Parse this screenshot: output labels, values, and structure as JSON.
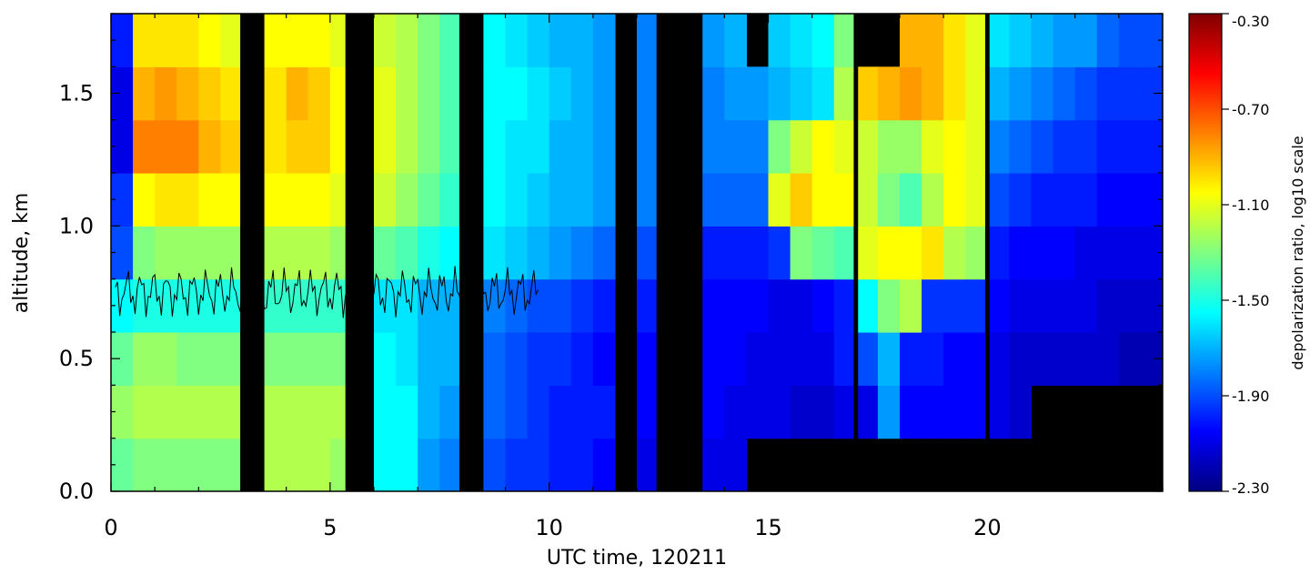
{
  "chart_data": [
    {
      "type": "heatmap",
      "title": "",
      "xlabel": "UTC time, 120211",
      "ylabel": "altitude, km",
      "xlim": [
        0,
        24
      ],
      "ylim": [
        0,
        1.8
      ],
      "x_ticks": [
        0,
        5,
        10,
        15,
        20
      ],
      "x_tick_labels": [
        "0",
        "5",
        "10",
        "15",
        "20"
      ],
      "y_ticks": [
        0.0,
        0.5,
        1.0,
        1.5
      ],
      "y_tick_labels": [
        "0.0",
        "0.5",
        "1.0",
        "1.5"
      ],
      "grid": false,
      "no_data_color": "#000000",
      "contour_color": "#000000",
      "x_bins": [
        0,
        0.5,
        1,
        1.5,
        2,
        2.5,
        3,
        3.5,
        4,
        4.5,
        5,
        5.5,
        6,
        6.5,
        7,
        7.5,
        8,
        8.5,
        9,
        9.5,
        10,
        10.5,
        11,
        11.5,
        12,
        12.5,
        13,
        13.5,
        14,
        14.5,
        15,
        15.5,
        16,
        16.5,
        17,
        17.5,
        18,
        18.5,
        19,
        19.5,
        20,
        20.5,
        21,
        21.5,
        22,
        22.5,
        23,
        23.5
      ],
      "y_bins": [
        0.0,
        0.2,
        0.4,
        0.6,
        0.8,
        1.0,
        1.2,
        1.4,
        1.6
      ],
      "values_log10_depol": [
        [
          -1.35,
          -1.25,
          -1.35,
          -1.55,
          -1.9,
          -1.95,
          -2.1,
          -2.1,
          -2.0
        ],
        [
          -1.3,
          -1.2,
          -1.25,
          -1.5,
          -1.3,
          -1.05,
          -0.8,
          -0.9,
          -1.0
        ],
        [
          -1.3,
          -1.2,
          -1.25,
          -1.5,
          -1.25,
          -1.0,
          -0.8,
          -0.85,
          -1.0
        ],
        [
          -1.3,
          -1.2,
          -1.3,
          -1.5,
          -1.25,
          -1.0,
          -0.8,
          -0.9,
          -1.0
        ],
        [
          -1.3,
          -1.2,
          -1.3,
          -1.5,
          -1.25,
          -1.05,
          -0.9,
          -0.95,
          -1.05
        ],
        [
          -1.3,
          -1.2,
          -1.3,
          -1.5,
          -1.25,
          -1.05,
          -0.95,
          -1.0,
          -1.1
        ],
        [
          null,
          null,
          null,
          null,
          null,
          null,
          null,
          null,
          null
        ],
        [
          -1.2,
          -1.2,
          -1.3,
          -1.45,
          -1.2,
          -1.05,
          -1.0,
          -1.0,
          -1.05
        ],
        [
          -1.2,
          -1.2,
          -1.3,
          -1.45,
          -1.2,
          -1.05,
          -0.95,
          -0.9,
          -1.05
        ],
        [
          -1.2,
          -1.2,
          -1.3,
          -1.45,
          -1.2,
          -1.05,
          -0.95,
          -0.95,
          -1.05
        ],
        [
          -1.25,
          -1.2,
          -1.3,
          -1.45,
          -1.25,
          -1.1,
          -1.05,
          -1.05,
          -1.1
        ],
        [
          null,
          null,
          null,
          null,
          null,
          null,
          null,
          null,
          null
        ],
        [
          -1.55,
          -1.55,
          -1.55,
          -1.6,
          -1.35,
          -1.15,
          -1.1,
          -1.1,
          -1.15
        ],
        [
          -1.55,
          -1.55,
          -1.6,
          -1.6,
          -1.4,
          -1.25,
          -1.2,
          -1.2,
          -1.2
        ],
        [
          -1.75,
          -1.7,
          -1.7,
          -1.7,
          -1.5,
          -1.35,
          -1.3,
          -1.3,
          -1.3
        ],
        [
          -1.8,
          -1.75,
          -1.7,
          -1.7,
          -1.55,
          -1.45,
          -1.4,
          -1.4,
          -1.4
        ],
        [
          null,
          null,
          null,
          null,
          null,
          null,
          null,
          null,
          null
        ],
        [
          -1.9,
          -1.85,
          -1.85,
          -1.8,
          -1.6,
          -1.55,
          -1.55,
          -1.55,
          -1.55
        ],
        [
          -1.95,
          -1.9,
          -1.9,
          -1.85,
          -1.65,
          -1.6,
          -1.6,
          -1.55,
          -1.6
        ],
        [
          -1.95,
          -1.95,
          -1.95,
          -1.9,
          -1.7,
          -1.65,
          -1.6,
          -1.6,
          -1.65
        ],
        [
          -2.0,
          -2.0,
          -1.95,
          -1.9,
          -1.75,
          -1.7,
          -1.7,
          -1.65,
          -1.7
        ],
        [
          -2.0,
          -2.0,
          -2.0,
          -1.95,
          -1.8,
          -1.7,
          -1.7,
          -1.7,
          -1.7
        ],
        [
          -2.05,
          -2.0,
          -2.05,
          -2.0,
          -1.85,
          -1.75,
          -1.75,
          -1.75,
          -1.75
        ],
        [
          null,
          null,
          null,
          null,
          null,
          null,
          null,
          null,
          null
        ],
        [
          -2.1,
          -2.05,
          -2.05,
          -2.0,
          -1.9,
          -1.8,
          -1.8,
          -1.8,
          -1.8
        ],
        [
          null,
          null,
          null,
          null,
          null,
          null,
          null,
          null,
          null
        ],
        [
          null,
          null,
          null,
          null,
          null,
          null,
          null,
          null,
          null
        ],
        [
          -2.1,
          -2.05,
          -2.05,
          -2.05,
          -2.0,
          -1.85,
          -1.8,
          -1.8,
          -1.75
        ],
        [
          -2.1,
          -2.1,
          -2.05,
          -2.05,
          -2.0,
          -1.85,
          -1.8,
          -1.75,
          -1.7
        ],
        [
          null,
          -2.1,
          -2.1,
          -2.05,
          -2.0,
          -1.85,
          -1.8,
          -1.75,
          null
        ],
        [
          null,
          -2.1,
          -2.1,
          -2.1,
          -1.95,
          -1.1,
          -1.3,
          -1.7,
          -1.65
        ],
        [
          null,
          -2.15,
          -2.1,
          -2.1,
          -1.3,
          -0.95,
          -1.15,
          -1.65,
          -1.6
        ],
        [
          null,
          -2.15,
          -2.1,
          -2.05,
          -1.35,
          -1.05,
          -1.05,
          -1.6,
          -1.55
        ],
        [
          null,
          -2.1,
          -2.0,
          -2.0,
          -1.4,
          -1.05,
          -1.1,
          -1.2,
          -1.3
        ],
        [
          null,
          -2.1,
          -1.9,
          -1.55,
          -1.1,
          -1.15,
          -1.15,
          -0.95,
          null
        ],
        [
          null,
          -1.75,
          -1.7,
          -1.3,
          -1.05,
          -1.3,
          -1.25,
          -0.9,
          null
        ],
        [
          null,
          -2.05,
          -2.0,
          -1.2,
          -1.05,
          -1.4,
          -1.25,
          -0.85,
          -0.9
        ],
        [
          null,
          -2.05,
          -2.0,
          -1.95,
          -1.0,
          -1.2,
          -1.1,
          -0.9,
          -0.9
        ],
        [
          null,
          -2.05,
          -2.05,
          -1.95,
          -1.2,
          -1.05,
          -1.05,
          -1.0,
          -1.0
        ],
        [
          null,
          -2.05,
          -2.05,
          -1.95,
          -1.25,
          -1.1,
          -1.1,
          -1.1,
          -1.1
        ],
        [
          null,
          -2.1,
          -2.1,
          -2.05,
          -2.0,
          -1.9,
          -1.8,
          -1.7,
          -1.6
        ],
        [
          null,
          -2.15,
          -2.15,
          -2.1,
          -2.05,
          -1.95,
          -1.85,
          -1.75,
          -1.65
        ],
        [
          null,
          null,
          -2.15,
          -2.1,
          -2.05,
          -2.0,
          -1.9,
          -1.8,
          -1.7
        ],
        [
          null,
          null,
          -2.15,
          -2.1,
          -2.05,
          -2.0,
          -1.95,
          -1.85,
          -1.75
        ],
        [
          null,
          null,
          -2.15,
          -2.1,
          -2.1,
          -2.0,
          -1.95,
          -1.9,
          -1.75
        ],
        [
          null,
          null,
          -2.15,
          -2.15,
          -2.1,
          -2.05,
          -2.0,
          -1.95,
          -1.85
        ],
        [
          null,
          null,
          -2.2,
          -2.15,
          -2.1,
          -2.05,
          -2.0,
          -1.95,
          -1.9
        ],
        [
          null,
          null,
          -2.2,
          -2.15,
          -2.1,
          -2.05,
          -2.0,
          -1.95,
          -1.9
        ]
      ],
      "black_time_bands": [
        [
          2.95,
          3.1
        ],
        [
          5.35,
          5.55
        ],
        [
          7.95,
          8.05
        ],
        [
          11.55,
          11.75
        ],
        [
          12.45,
          12.85
        ],
        [
          16.95,
          17.05
        ],
        [
          19.95,
          20.05
        ]
      ],
      "colorbar": {
        "label": "depolarization ratio, log10 scale",
        "range": [
          -2.3,
          -0.3
        ],
        "ticks": [
          -0.3,
          -0.7,
          -1.1,
          -1.5,
          -1.9,
          -2.3
        ],
        "tick_labels": [
          "-0.30",
          "-0.70",
          "-1.10",
          "-1.50",
          "-1.90",
          "-2.30"
        ],
        "colormap": [
          "#000080",
          "#0000ff",
          "#0080ff",
          "#00ffff",
          "#80ff80",
          "#ffff00",
          "#ff8000",
          "#ff0000",
          "#800000"
        ]
      }
    }
  ]
}
